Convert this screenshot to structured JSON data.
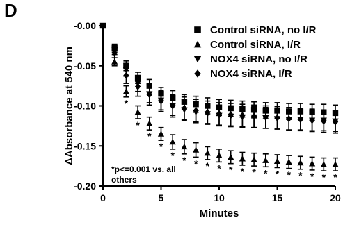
{
  "panel_label": "D",
  "note_lines": [
    "*p<=0.001 vs. all",
    "others"
  ],
  "chart_data": {
    "type": "scatter",
    "title": "",
    "xlabel": "Minutes",
    "ylabel": "ΔAbsorbance at 540 nm",
    "xlim": [
      0,
      20
    ],
    "ylim": [
      -0.2,
      0.0
    ],
    "x_ticks": [
      0,
      5,
      10,
      15,
      20
    ],
    "y_ticks": [
      -0.2,
      -0.15,
      -0.1,
      -0.05,
      0.0
    ],
    "y_tick_labels": [
      "-0.20",
      "-0.15",
      "-0.10",
      "-0.05",
      "-0.00"
    ],
    "grid": false,
    "legend_position": "top-right",
    "significance_marker": "*",
    "series": [
      {
        "name": "Control siRNA, no I/R",
        "marker": "square",
        "x": [
          1,
          2,
          3,
          4,
          5,
          6,
          7,
          8,
          9,
          10,
          11,
          12,
          13,
          14,
          15,
          16,
          17,
          18,
          19,
          20
        ],
        "y": [
          -0.028,
          -0.05,
          -0.065,
          -0.075,
          -0.085,
          -0.09,
          -0.095,
          -0.098,
          -0.1,
          -0.102,
          -0.103,
          -0.104,
          -0.105,
          -0.106,
          -0.106,
          -0.107,
          -0.107,
          -0.108,
          -0.108,
          -0.109
        ],
        "error": [
          0.005,
          0.006,
          0.007,
          0.008,
          0.008,
          0.009,
          0.009,
          0.01,
          0.01,
          0.01,
          0.01,
          0.01,
          0.01,
          0.01,
          0.01,
          0.01,
          0.01,
          0.01,
          0.01,
          0.01
        ]
      },
      {
        "name": "Control siRNA, I/R",
        "marker": "triangle-up",
        "x": [
          1,
          2,
          3,
          4,
          5,
          6,
          7,
          8,
          9,
          10,
          11,
          12,
          13,
          14,
          15,
          16,
          17,
          18,
          19,
          20
        ],
        "y": [
          -0.045,
          -0.082,
          -0.108,
          -0.122,
          -0.135,
          -0.145,
          -0.151,
          -0.155,
          -0.159,
          -0.162,
          -0.164,
          -0.166,
          -0.167,
          -0.168,
          -0.169,
          -0.17,
          -0.171,
          -0.172,
          -0.173,
          -0.173
        ],
        "error": [
          0.005,
          0.007,
          0.008,
          0.008,
          0.008,
          0.009,
          0.009,
          0.009,
          0.008,
          0.008,
          0.008,
          0.008,
          0.008,
          0.008,
          0.008,
          0.008,
          0.008,
          0.008,
          0.008,
          0.008
        ],
        "significant_x": [
          2,
          3,
          4,
          5,
          6,
          7,
          8,
          9,
          10,
          11,
          12,
          13,
          14,
          15,
          16,
          17,
          18,
          19,
          20
        ]
      },
      {
        "name": "NOX4 siRNA, no I/R",
        "marker": "triangle-down",
        "x": [
          1,
          2,
          3,
          4,
          5,
          6,
          7,
          8,
          9,
          10,
          11,
          12,
          13,
          14,
          15,
          16,
          17,
          18,
          19,
          20
        ],
        "y": [
          -0.03,
          -0.055,
          -0.072,
          -0.085,
          -0.093,
          -0.1,
          -0.105,
          -0.108,
          -0.11,
          -0.112,
          -0.113,
          -0.114,
          -0.114,
          -0.115,
          -0.116,
          -0.117,
          -0.117,
          -0.118,
          -0.118,
          -0.119
        ],
        "error": [
          0.006,
          0.008,
          0.01,
          0.011,
          0.012,
          0.012,
          0.013,
          0.013,
          0.013,
          0.013,
          0.013,
          0.013,
          0.013,
          0.013,
          0.013,
          0.013,
          0.013,
          0.013,
          0.013,
          0.013
        ]
      },
      {
        "name": "NOX4 siRNA, I/R",
        "marker": "diamond",
        "x": [
          1,
          2,
          3,
          4,
          5,
          6,
          7,
          8,
          9,
          10,
          11,
          12,
          13,
          14,
          15,
          16,
          17,
          18,
          19,
          20
        ],
        "y": [
          -0.034,
          -0.062,
          -0.076,
          -0.086,
          -0.094,
          -0.1,
          -0.103,
          -0.106,
          -0.108,
          -0.11,
          -0.111,
          -0.112,
          -0.113,
          -0.114,
          -0.115,
          -0.116,
          -0.117,
          -0.118,
          -0.119,
          -0.12
        ],
        "error": [
          0.006,
          0.01,
          0.012,
          0.013,
          0.013,
          0.014,
          0.014,
          0.014,
          0.014,
          0.014,
          0.014,
          0.014,
          0.014,
          0.014,
          0.014,
          0.014,
          0.014,
          0.014,
          0.014,
          0.014
        ]
      }
    ],
    "origin_point": {
      "x": 0,
      "y": 0.0
    }
  }
}
